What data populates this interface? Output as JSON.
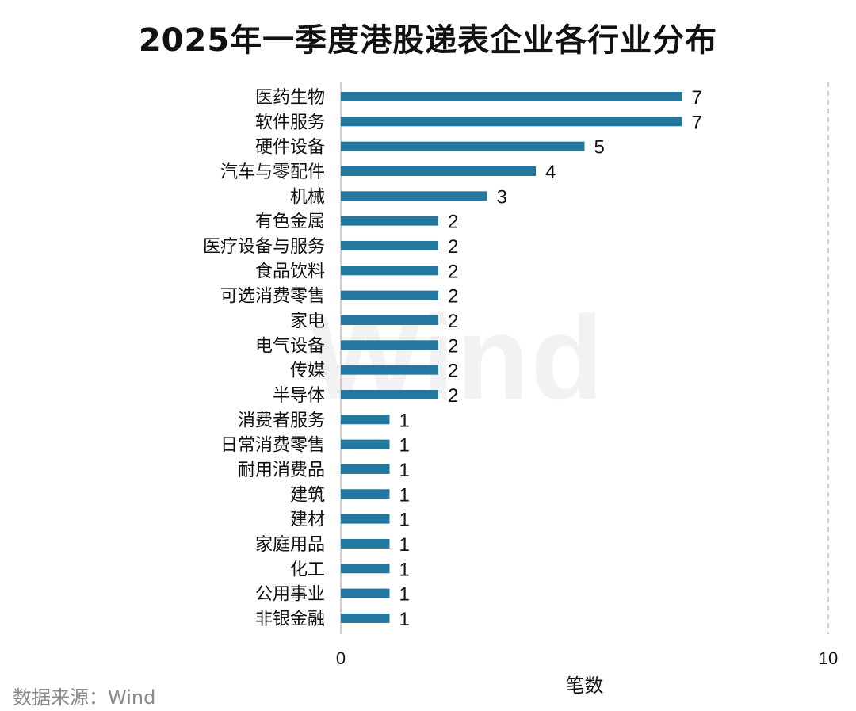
{
  "source_note": "数据来源：Wind",
  "watermark_text": "Wind",
  "colors": {
    "bar": "#2478a0",
    "axis": "#bfbfbf",
    "text": "#111111"
  },
  "chart_data": {
    "type": "bar",
    "orientation": "horizontal",
    "title": "2025年一季度港股递表企业各行业分布",
    "xlabel": "笔数",
    "ylabel": "",
    "xlim": [
      0,
      10
    ],
    "xticks": [
      0,
      10
    ],
    "grid": false,
    "legend": "none",
    "categories": [
      "医药生物",
      "软件服务",
      "硬件设备",
      "汽车与零配件",
      "机械",
      "有色金属",
      "医疗设备与服务",
      "食品饮料",
      "可选消费零售",
      "家电",
      "电气设备",
      "传媒",
      "半导体",
      "消费者服务",
      "日常消费零售",
      "耐用消费品",
      "建筑",
      "建材",
      "家庭用品",
      "化工",
      "公用事业",
      "非银金融"
    ],
    "values": [
      7,
      7,
      5,
      4,
      3,
      2,
      2,
      2,
      2,
      2,
      2,
      2,
      2,
      1,
      1,
      1,
      1,
      1,
      1,
      1,
      1,
      1
    ]
  }
}
